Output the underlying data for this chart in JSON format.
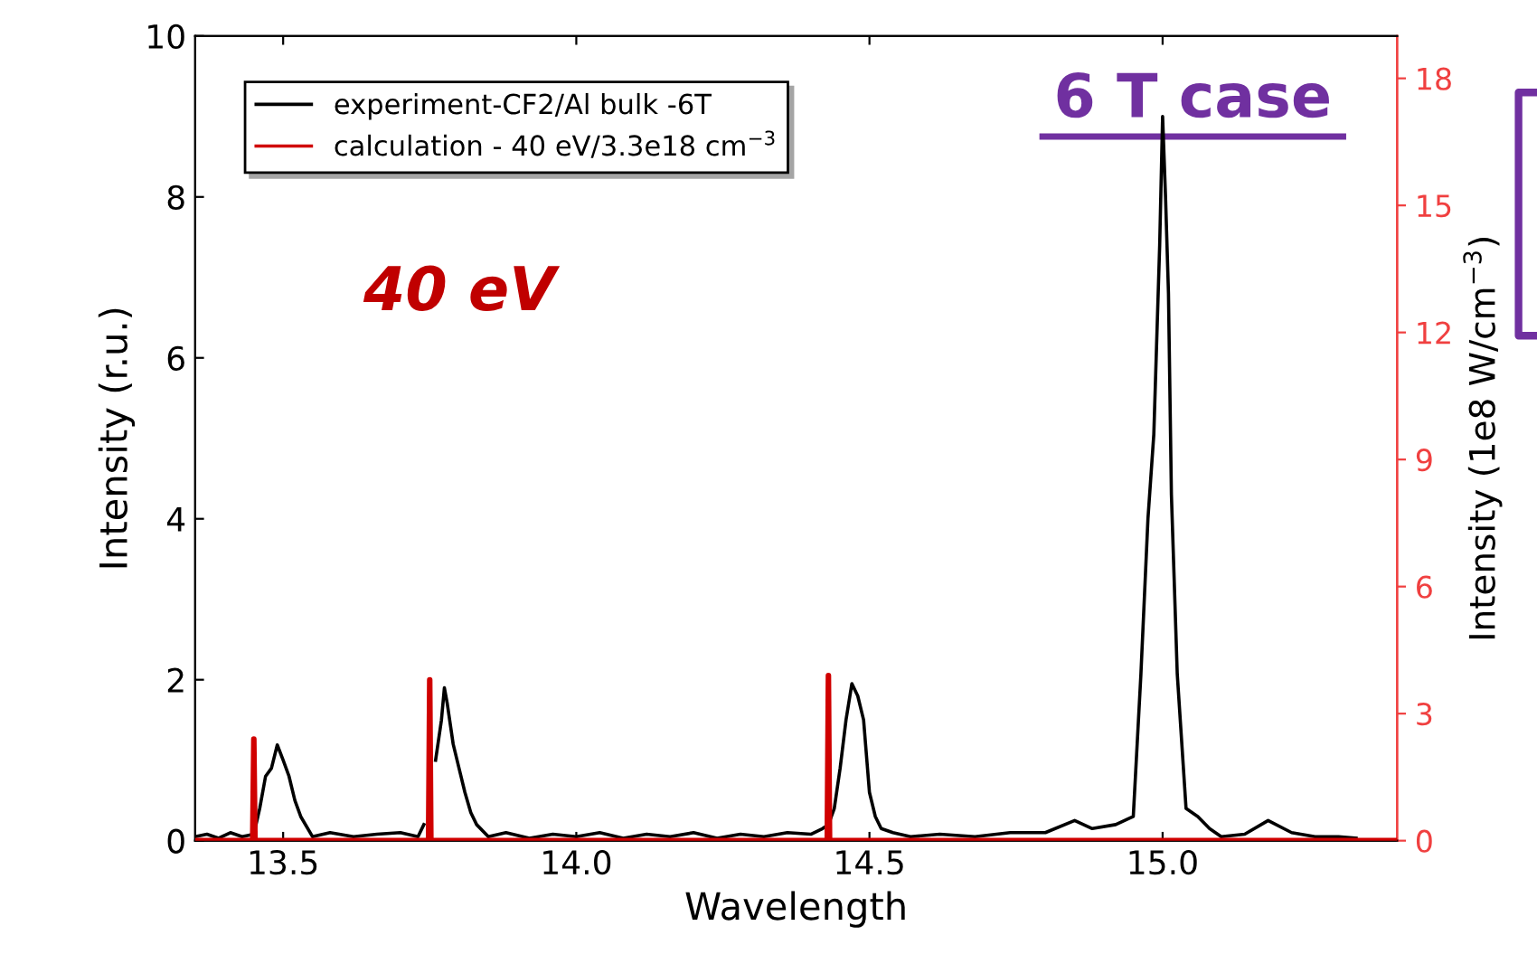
{
  "chart_data": {
    "type": "line",
    "xlabel": "Wavelength",
    "ylabel": "Intensity (r.u.)",
    "y2label": "Intensity (1e8 W/cm$^{−3}$)",
    "xlim": [
      13.35,
      15.4
    ],
    "xticks": [
      13.5,
      {
        "value": 14,
        "label": "14.0"
      },
      14.5,
      {
        "value": 15,
        "label": "15.0"
      }
    ],
    "ylim": [
      0,
      10
    ],
    "yticks": [
      0,
      2,
      4,
      6,
      8,
      10
    ],
    "y2lim": [
      0,
      19
    ],
    "y2ticks": [
      0,
      3,
      6,
      9,
      12,
      15,
      18
    ],
    "legend": "top left",
    "grid": false,
    "series": [
      {
        "name": "experiment-CF2/Al bulk -6T",
        "color": "#000000",
        "x": [
          13.35,
          13.37,
          13.39,
          13.41,
          13.43,
          13.45,
          13.46,
          13.47,
          13.48,
          13.49,
          13.5,
          13.51,
          13.52,
          13.53,
          13.55,
          13.58,
          13.62,
          13.66,
          13.7,
          13.73,
          13.74,
          13.75,
          13.76,
          13.77,
          13.775,
          13.78,
          13.79,
          13.8,
          13.81,
          13.82,
          13.83,
          13.85,
          13.88,
          13.92,
          13.96,
          14.0,
          14.04,
          14.08,
          14.12,
          14.16,
          14.2,
          14.24,
          14.28,
          14.32,
          14.36,
          14.4,
          14.42,
          14.43,
          14.44,
          14.45,
          14.46,
          14.47,
          14.48,
          14.49,
          14.5,
          14.51,
          14.52,
          14.54,
          14.57,
          14.62,
          14.68,
          14.74,
          14.8,
          14.85,
          14.88,
          14.92,
          14.95,
          14.963,
          14.975,
          14.985,
          14.995,
          15.0,
          15.005,
          15.01,
          15.015,
          15.025,
          15.04,
          15.06,
          15.08,
          15.1,
          15.14,
          15.18,
          15.22,
          15.26,
          15.3,
          15.33
        ],
        "values": [
          0.05,
          0.08,
          0.03,
          0.1,
          0.05,
          0.08,
          0.4,
          0.8,
          0.9,
          1.19,
          1.0,
          0.8,
          0.5,
          0.3,
          0.05,
          0.1,
          0.05,
          0.08,
          0.1,
          0.05,
          0.2,
          null,
          1.0,
          1.5,
          1.9,
          1.7,
          1.2,
          0.9,
          0.6,
          0.35,
          0.2,
          0.05,
          0.1,
          0.03,
          0.08,
          0.05,
          0.1,
          0.03,
          0.08,
          0.05,
          0.1,
          0.03,
          0.08,
          0.05,
          0.1,
          0.08,
          0.15,
          0.2,
          0.4,
          0.9,
          1.5,
          1.95,
          1.8,
          1.5,
          0.6,
          0.3,
          0.15,
          0.1,
          0.05,
          0.08,
          0.05,
          0.1,
          0.1,
          0.25,
          0.15,
          0.2,
          0.3,
          2.07,
          4.0,
          5.05,
          7.4,
          9.0,
          8.0,
          6.8,
          4.3,
          2.07,
          0.4,
          0.3,
          0.15,
          0.05,
          0.08,
          0.25,
          0.1,
          0.05,
          0.05,
          0.03
        ]
      },
      {
        "name": "calculation - 40 eV/3.3e18 cm$^{−3}$",
        "color": "#d00000",
        "axis": "y2",
        "x": [
          13.35,
          13.448,
          13.45,
          13.452,
          13.748,
          13.75,
          13.752,
          14.428,
          14.43,
          14.432,
          15.4
        ],
        "values": [
          0,
          0,
          2.4,
          0,
          0,
          3.8,
          0,
          0,
          3.9,
          0,
          0
        ]
      }
    ],
    "annotations": [
      "40 eV",
      "6 T case"
    ]
  }
}
